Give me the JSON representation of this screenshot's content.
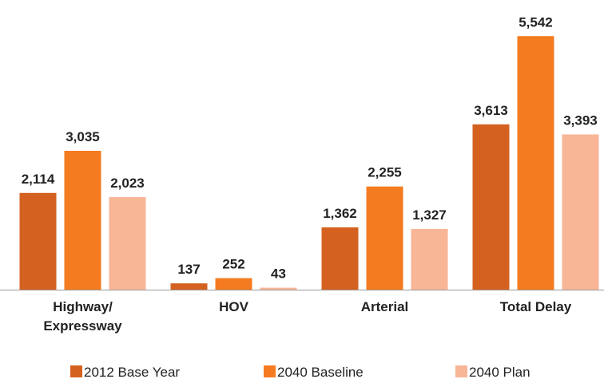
{
  "chart_data": {
    "type": "bar",
    "categories": [
      "Highway/ Expressway",
      "HOV",
      "Arterial",
      "Total Delay"
    ],
    "series": [
      {
        "name": "2012 Base Year",
        "color": "#d4611f",
        "values": [
          2114,
          137,
          1362,
          3613
        ],
        "value_labels": [
          "2,114",
          "137",
          "1,362",
          "3,613"
        ]
      },
      {
        "name": "2040 Baseline",
        "color": "#f47b20",
        "values": [
          3035,
          252,
          2255,
          5542
        ],
        "value_labels": [
          "3,035",
          "252",
          "2,255",
          "5,542"
        ]
      },
      {
        "name": "2040 Plan",
        "color": "#f8b697",
        "values": [
          2023,
          43,
          1327,
          3393
        ],
        "value_labels": [
          "2,023",
          "43",
          "1,327",
          "3,393"
        ]
      }
    ],
    "ylim": [
      0,
      6000
    ],
    "legend": "bottom"
  }
}
